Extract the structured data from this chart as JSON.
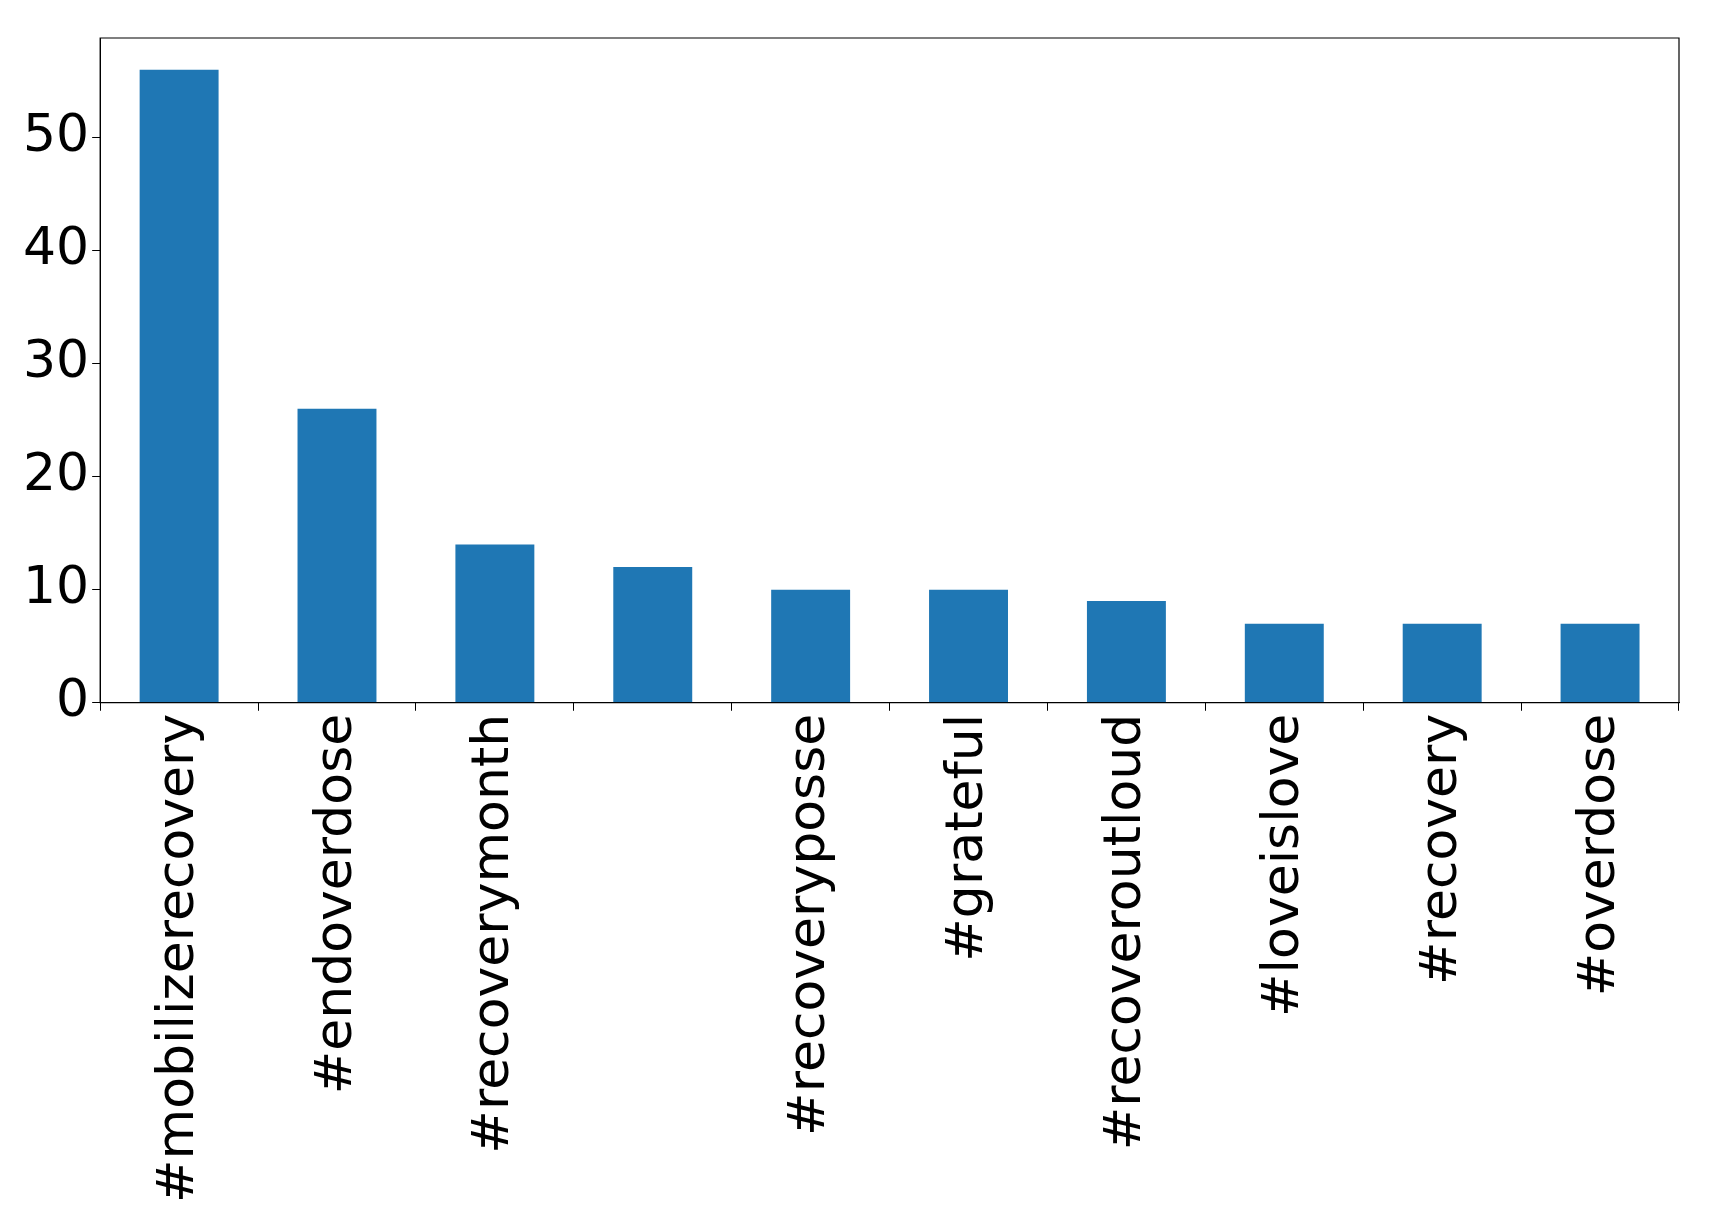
{
  "chart_data": {
    "type": "bar",
    "categories": [
      "#mobilizerecovery",
      "#endoverdose",
      "#recoverymonth",
      null,
      "#recoveryposse",
      "#grateful",
      "#recoveroutloud",
      "#loveislove",
      "#recovery",
      "#overdose"
    ],
    "values": [
      56,
      26,
      14,
      12,
      10,
      10,
      9,
      7,
      7,
      7
    ],
    "color": "#1f77b4",
    "ylim": [
      0,
      58.8
    ],
    "yticks": [
      0,
      10,
      20,
      30,
      40,
      50
    ],
    "grid": false,
    "legend": false
  }
}
